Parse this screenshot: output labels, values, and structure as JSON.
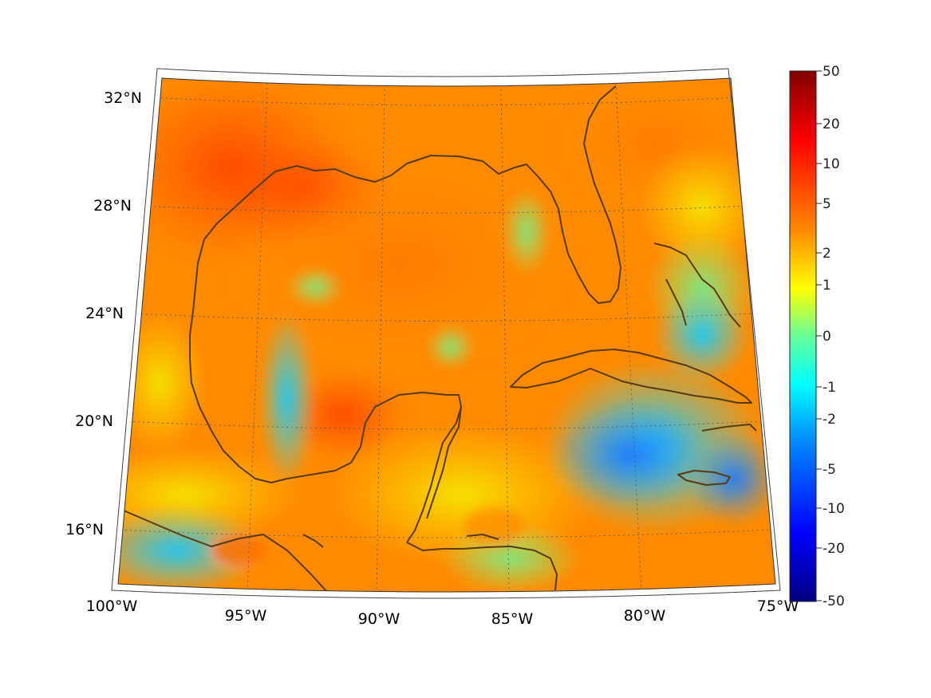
{
  "map": {
    "projection": "conic",
    "lon_labels": [
      "100°W",
      "95°W",
      "90°W",
      "85°W",
      "80°W",
      "75°W"
    ],
    "lat_labels": [
      "16°N",
      "20°N",
      "24°N",
      "28°N",
      "32°N"
    ],
    "coastline_color": "#5a3a10",
    "gridline_style": "dotted",
    "land_masses": [
      "Gulf Coast US",
      "Florida",
      "Mexico",
      "Yucatan",
      "Cuba",
      "Jamaica",
      "Bahamas",
      "Central America"
    ]
  },
  "colorbar": {
    "colormap": "jet",
    "tick_labels": [
      "50",
      "20",
      "10",
      "5",
      "2",
      "1",
      "0",
      "-1",
      "-2",
      "-5",
      "-10",
      "-20",
      "-50"
    ],
    "colors": [
      "#800000",
      "#ff0000",
      "#ffff00",
      "#00ff80",
      "#00ffff",
      "#0000ff",
      "#000080"
    ]
  }
}
